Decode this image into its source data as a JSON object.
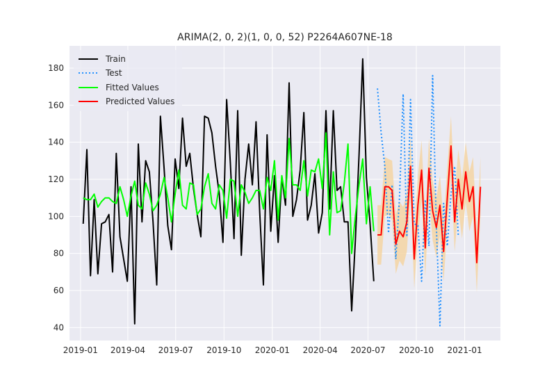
{
  "chart_data": {
    "type": "line",
    "title": "ARIMA(2, 0, 2)(1, 0, 0, 52) P2264A607NE-18",
    "xlabel": "",
    "ylabel": "",
    "xlim": [
      "2018-12-11",
      "2021-03-10"
    ],
    "ylim": [
      33,
      192
    ],
    "x_ticks": [
      "2019-01-01",
      "2019-04-01",
      "2019-07-01",
      "2019-10-01",
      "2020-01-01",
      "2020-04-01",
      "2020-07-01",
      "2020-10-01",
      "2021-01-01"
    ],
    "x_tick_labels": [
      "2019-01",
      "2019-04",
      "2019-07",
      "2019-10",
      "2020-01",
      "2020-04",
      "2020-07",
      "2020-10",
      "2021-01"
    ],
    "y_ticks": [
      40,
      60,
      80,
      100,
      120,
      140,
      160,
      180
    ],
    "y_tick_labels": [
      "40",
      "60",
      "80",
      "100",
      "120",
      "140",
      "160",
      "180"
    ],
    "grid": true,
    "legend_position": "top-left",
    "series": [
      {
        "name": "Train",
        "color": "#000000",
        "style": "solid",
        "x": [
          "2019-01-06",
          "2019-01-13",
          "2019-01-20",
          "2019-01-27",
          "2019-02-03",
          "2019-02-10",
          "2019-02-17",
          "2019-02-24",
          "2019-03-03",
          "2019-03-10",
          "2019-03-17",
          "2019-03-24",
          "2019-03-31",
          "2019-04-07",
          "2019-04-14",
          "2019-04-21",
          "2019-04-28",
          "2019-05-05",
          "2019-05-12",
          "2019-05-19",
          "2019-05-26",
          "2019-06-02",
          "2019-06-09",
          "2019-06-16",
          "2019-06-23",
          "2019-06-30",
          "2019-07-07",
          "2019-07-14",
          "2019-07-21",
          "2019-07-28",
          "2019-08-04",
          "2019-08-11",
          "2019-08-18",
          "2019-08-25",
          "2019-09-01",
          "2019-09-08",
          "2019-09-15",
          "2019-09-22",
          "2019-09-29",
          "2019-10-06",
          "2019-10-13",
          "2019-10-20",
          "2019-10-27",
          "2019-11-03",
          "2019-11-10",
          "2019-11-17",
          "2019-11-24",
          "2019-12-01",
          "2019-12-08",
          "2019-12-15",
          "2019-12-22",
          "2019-12-29",
          "2020-01-05",
          "2020-01-12",
          "2020-01-19",
          "2020-01-26",
          "2020-02-02",
          "2020-02-09",
          "2020-02-16",
          "2020-02-23",
          "2020-03-01",
          "2020-03-08",
          "2020-03-15",
          "2020-03-22",
          "2020-03-29",
          "2020-04-05",
          "2020-04-12",
          "2020-04-19",
          "2020-04-26",
          "2020-05-03",
          "2020-05-10",
          "2020-05-17",
          "2020-05-24",
          "2020-05-31",
          "2020-06-07",
          "2020-06-14",
          "2020-06-21",
          "2020-06-28",
          "2020-07-05",
          "2020-07-12"
        ],
        "values": [
          96,
          136,
          68,
          109,
          69,
          96,
          97,
          101,
          70,
          134,
          89,
          77,
          65,
          116,
          42,
          139,
          97,
          130,
          124,
          97,
          63,
          154,
          126,
          95,
          82,
          131,
          115,
          153,
          127,
          134,
          115,
          101,
          89,
          154,
          153,
          145,
          127,
          112,
          86,
          163,
          129,
          88,
          157,
          79,
          120,
          139,
          117,
          151,
          102,
          63,
          144,
          92,
          122,
          86,
          121,
          106,
          172,
          100,
          109,
          125,
          156,
          98,
          106,
          123,
          91,
          102,
          157,
          104,
          157,
          114,
          116,
          97,
          97,
          49,
          87,
          133,
          185,
          121,
          96,
          65
        ]
      },
      {
        "name": "Test",
        "color": "#1f8fff",
        "style": "dotted",
        "x": [
          "2020-07-19",
          "2020-07-26",
          "2020-08-02",
          "2020-08-09",
          "2020-08-16",
          "2020-08-23",
          "2020-08-30",
          "2020-09-06",
          "2020-09-13",
          "2020-09-20",
          "2020-09-27",
          "2020-10-04",
          "2020-10-11",
          "2020-10-18",
          "2020-10-25",
          "2020-11-01",
          "2020-11-08",
          "2020-11-15",
          "2020-11-22",
          "2020-11-29",
          "2020-12-06",
          "2020-12-13",
          "2020-12-20"
        ],
        "values": [
          169,
          145,
          127,
          91,
          117,
          77,
          110,
          166,
          89,
          163,
          96,
          95,
          65,
          109,
          84,
          176,
          95,
          41,
          107,
          84,
          112,
          127,
          89
        ]
      },
      {
        "name": "Fitted Values",
        "color": "#00ff00",
        "style": "solid",
        "x": [
          "2019-01-06",
          "2019-01-13",
          "2019-01-20",
          "2019-01-27",
          "2019-02-03",
          "2019-02-10",
          "2019-02-17",
          "2019-02-24",
          "2019-03-03",
          "2019-03-10",
          "2019-03-17",
          "2019-03-24",
          "2019-03-31",
          "2019-04-07",
          "2019-04-14",
          "2019-04-21",
          "2019-04-28",
          "2019-05-05",
          "2019-05-12",
          "2019-05-19",
          "2019-05-26",
          "2019-06-02",
          "2019-06-09",
          "2019-06-16",
          "2019-06-23",
          "2019-06-30",
          "2019-07-07",
          "2019-07-14",
          "2019-07-21",
          "2019-07-28",
          "2019-08-04",
          "2019-08-11",
          "2019-08-18",
          "2019-08-25",
          "2019-09-01",
          "2019-09-08",
          "2019-09-15",
          "2019-09-22",
          "2019-09-29",
          "2019-10-06",
          "2019-10-13",
          "2019-10-20",
          "2019-10-27",
          "2019-11-03",
          "2019-11-10",
          "2019-11-17",
          "2019-11-24",
          "2019-12-01",
          "2019-12-08",
          "2019-12-15",
          "2019-12-22",
          "2019-12-29",
          "2020-01-05",
          "2020-01-12",
          "2020-01-19",
          "2020-01-26",
          "2020-02-02",
          "2020-02-09",
          "2020-02-16",
          "2020-02-23",
          "2020-03-01",
          "2020-03-08",
          "2020-03-15",
          "2020-03-22",
          "2020-03-29",
          "2020-04-05",
          "2020-04-12",
          "2020-04-19",
          "2020-04-26",
          "2020-05-03",
          "2020-05-10",
          "2020-05-17",
          "2020-05-24",
          "2020-05-31",
          "2020-06-07",
          "2020-06-14",
          "2020-06-21",
          "2020-06-28",
          "2020-07-05",
          "2020-07-12"
        ],
        "values": [
          110,
          109,
          109,
          112,
          105,
          108,
          110,
          110,
          108,
          107,
          116,
          109,
          100,
          111,
          119,
          106,
          104,
          118,
          112,
          103,
          106,
          112,
          121,
          110,
          97,
          112,
          125,
          106,
          104,
          118,
          117,
          101,
          104,
          116,
          123,
          107,
          104,
          117,
          114,
          99,
          120,
          119,
          100,
          117,
          113,
          107,
          110,
          114,
          114,
          104,
          121,
          114,
          130,
          98,
          122,
          110,
          142,
          117,
          117,
          114,
          130,
          111,
          125,
          124,
          131,
          115,
          145,
          90,
          124,
          102,
          103,
          118,
          139,
          80,
          100,
          117,
          131,
          96,
          116,
          92
        ]
      },
      {
        "name": "Predicted Values",
        "color": "#ff0000",
        "style": "solid",
        "x": [
          "2020-07-19",
          "2020-07-26",
          "2020-08-02",
          "2020-08-09",
          "2020-08-16",
          "2020-08-23",
          "2020-08-30",
          "2020-09-06",
          "2020-09-13",
          "2020-09-20",
          "2020-09-27",
          "2020-10-04",
          "2020-10-11",
          "2020-10-18",
          "2020-10-25",
          "2020-11-01",
          "2020-11-08",
          "2020-11-15",
          "2020-11-22",
          "2020-11-29",
          "2020-12-06",
          "2020-12-13",
          "2020-12-20",
          "2020-12-27",
          "2021-01-03",
          "2021-01-10",
          "2021-01-17",
          "2021-01-24",
          "2021-01-31"
        ],
        "values": [
          90,
          90,
          116,
          116,
          114,
          85,
          92,
          89,
          97,
          127,
          77,
          106,
          125,
          83,
          126,
          103,
          94,
          106,
          81,
          110,
          138,
          97,
          120,
          104,
          124,
          108,
          116,
          75,
          116
        ]
      }
    ],
    "confidence_band": {
      "color": "#f5d5a3",
      "x": [
        "2020-07-19",
        "2020-07-26",
        "2020-08-02",
        "2020-08-09",
        "2020-08-16",
        "2020-08-23",
        "2020-08-30",
        "2020-09-06",
        "2020-09-13",
        "2020-09-20",
        "2020-09-27",
        "2020-10-04",
        "2020-10-11",
        "2020-10-18",
        "2020-10-25",
        "2020-11-01",
        "2020-11-08",
        "2020-11-15",
        "2020-11-22",
        "2020-11-29",
        "2020-12-06",
        "2020-12-13",
        "2020-12-20",
        "2020-12-27",
        "2021-01-03",
        "2021-01-10",
        "2021-01-17",
        "2021-01-24",
        "2021-01-31"
      ],
      "lower": [
        74,
        74,
        100,
        101,
        98,
        69,
        76,
        73,
        81,
        111,
        61,
        90,
        109,
        67,
        110,
        87,
        78,
        90,
        65,
        94,
        122,
        81,
        104,
        88,
        108,
        92,
        100,
        59,
        100
      ],
      "upper": [
        106,
        106,
        132,
        131,
        130,
        101,
        108,
        105,
        113,
        143,
        93,
        122,
        141,
        99,
        142,
        119,
        110,
        122,
        97,
        126,
        154,
        113,
        136,
        120,
        140,
        124,
        132,
        91,
        132
      ]
    }
  }
}
